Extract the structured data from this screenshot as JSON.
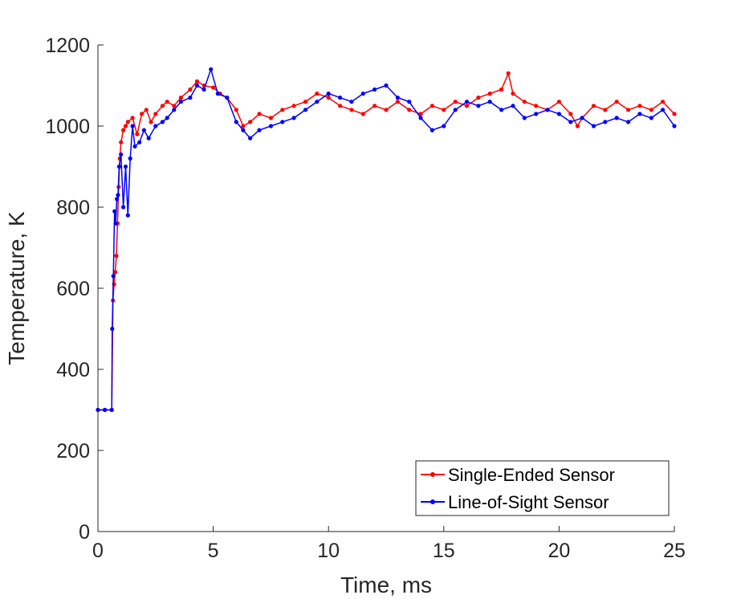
{
  "chart_data": {
    "type": "line",
    "xlabel": "Time, ms",
    "ylabel": "Temperature, K",
    "xlim": [
      0,
      25
    ],
    "ylim": [
      0,
      1200
    ],
    "xticks": [
      "0",
      "5",
      "10",
      "15",
      "20",
      "25"
    ],
    "yticks": [
      "0",
      "200",
      "400",
      "600",
      "800",
      "1000",
      "1200"
    ],
    "grid": false,
    "legend_position": "bottom-right",
    "series": [
      {
        "name": "Single-Ended Sensor",
        "color": "#ff0000",
        "x": [
          0,
          0.3,
          0.6,
          0.65,
          0.7,
          0.75,
          0.8,
          0.85,
          0.9,
          0.95,
          1.0,
          1.1,
          1.2,
          1.3,
          1.5,
          1.7,
          1.9,
          2.1,
          2.3,
          2.5,
          2.8,
          3.0,
          3.3,
          3.6,
          4.0,
          4.3,
          4.6,
          5.0,
          5.3,
          5.6,
          6.0,
          6.3,
          6.6,
          7.0,
          7.5,
          8.0,
          8.5,
          9.0,
          9.5,
          10.0,
          10.5,
          11.0,
          11.5,
          12.0,
          12.5,
          13.0,
          13.5,
          14.0,
          14.5,
          15.0,
          15.5,
          16.0,
          16.5,
          17.0,
          17.5,
          17.8,
          18.0,
          18.5,
          19.0,
          19.5,
          20.0,
          20.5,
          20.8,
          21.0,
          21.5,
          22.0,
          22.5,
          23.0,
          23.5,
          24.0,
          24.5,
          25.0
        ],
        "y": [
          300,
          300,
          300,
          570,
          610,
          640,
          680,
          760,
          850,
          920,
          960,
          990,
          1000,
          1010,
          1020,
          980,
          1030,
          1040,
          1010,
          1030,
          1050,
          1060,
          1050,
          1070,
          1090,
          1110,
          1100,
          1095,
          1080,
          1070,
          1040,
          1000,
          1010,
          1030,
          1020,
          1040,
          1050,
          1060,
          1080,
          1070,
          1050,
          1040,
          1030,
          1050,
          1040,
          1060,
          1040,
          1030,
          1050,
          1040,
          1060,
          1050,
          1070,
          1080,
          1090,
          1130,
          1080,
          1060,
          1050,
          1040,
          1060,
          1030,
          1000,
          1020,
          1050,
          1040,
          1060,
          1040,
          1050,
          1040,
          1060,
          1030
        ]
      },
      {
        "name": "Line-of-Sight Sensor",
        "color": "#0000ff",
        "x": [
          0,
          0.3,
          0.6,
          0.62,
          0.67,
          0.72,
          0.77,
          0.82,
          0.87,
          0.92,
          1.0,
          1.1,
          1.2,
          1.3,
          1.4,
          1.5,
          1.6,
          1.8,
          2.0,
          2.2,
          2.5,
          2.8,
          3.0,
          3.3,
          3.6,
          4.0,
          4.3,
          4.6,
          4.9,
          5.2,
          5.6,
          6.0,
          6.3,
          6.6,
          7.0,
          7.5,
          8.0,
          8.5,
          9.0,
          9.5,
          10.0,
          10.5,
          11.0,
          11.5,
          12.0,
          12.5,
          13.0,
          13.5,
          14.0,
          14.5,
          15.0,
          15.5,
          16.0,
          16.5,
          17.0,
          17.5,
          18.0,
          18.5,
          19.0,
          19.5,
          20.0,
          20.5,
          21.0,
          21.5,
          22.0,
          22.5,
          23.0,
          23.5,
          24.0,
          24.5,
          25.0
        ],
        "y": [
          300,
          300,
          300,
          500,
          630,
          790,
          760,
          820,
          830,
          900,
          930,
          800,
          900,
          780,
          920,
          1000,
          950,
          960,
          990,
          970,
          1000,
          1010,
          1020,
          1040,
          1060,
          1070,
          1100,
          1090,
          1140,
          1080,
          1070,
          1010,
          990,
          970,
          990,
          1000,
          1010,
          1020,
          1040,
          1060,
          1080,
          1070,
          1060,
          1080,
          1090,
          1100,
          1070,
          1060,
          1020,
          990,
          1000,
          1040,
          1060,
          1050,
          1060,
          1040,
          1050,
          1020,
          1030,
          1040,
          1030,
          1010,
          1020,
          1000,
          1010,
          1020,
          1010,
          1030,
          1020,
          1040,
          1000
        ]
      }
    ]
  }
}
